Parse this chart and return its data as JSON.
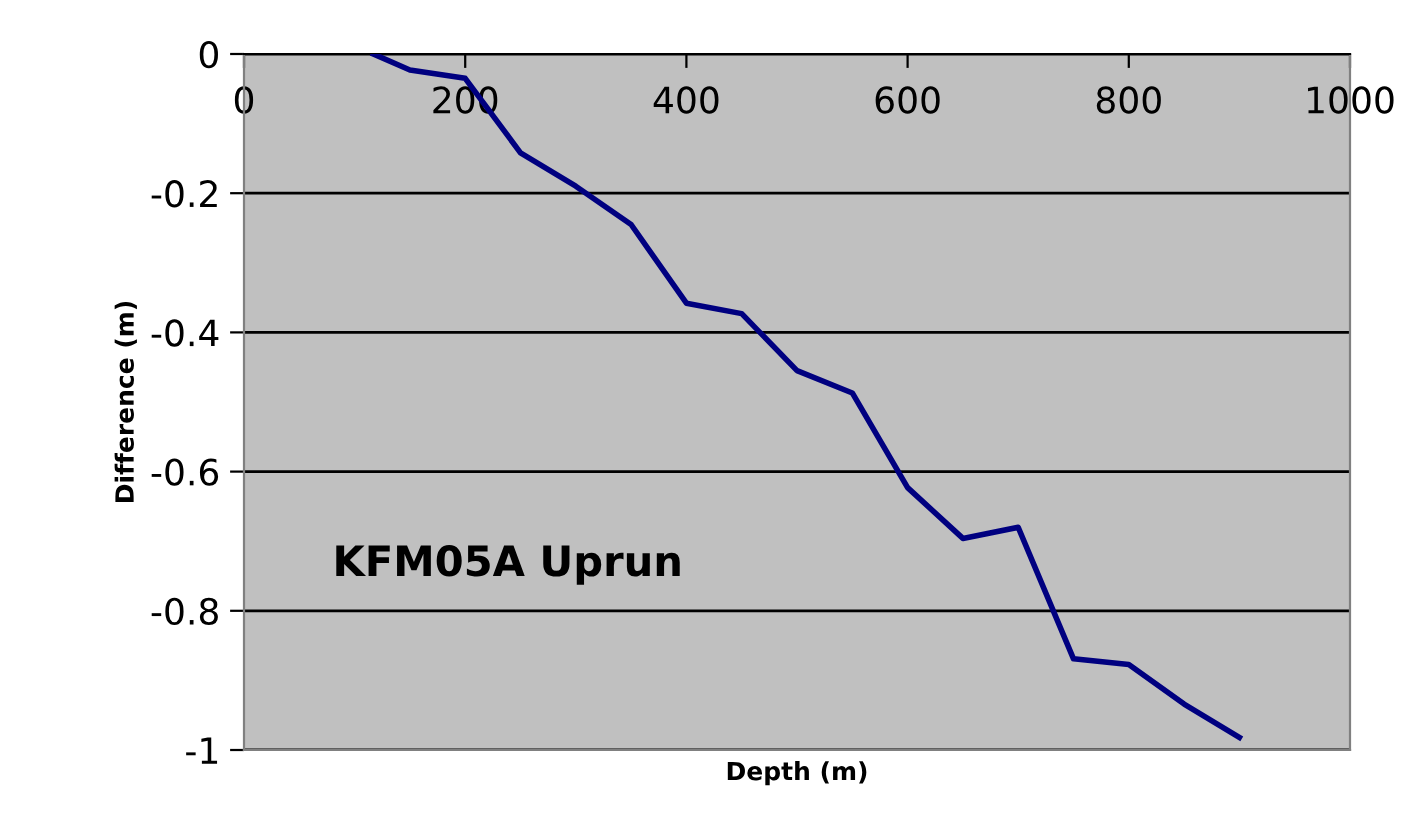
{
  "chart_data": {
    "type": "line",
    "xlabel": "Depth (m)",
    "ylabel": "Difference (m)",
    "annotations": [
      "KFM05A Uprun"
    ],
    "x": [
      117,
      150,
      200,
      250,
      300,
      350,
      400,
      450,
      500,
      550,
      600,
      650,
      700,
      750,
      800,
      850,
      900
    ],
    "series": [
      {
        "color": "#000080",
        "values": [
          0,
          -0.023,
          -0.035,
          -0.142,
          -0.19,
          -0.245,
          -0.358,
          -0.373,
          -0.455,
          -0.487,
          -0.623,
          -0.696,
          -0.68,
          -0.869,
          -0.877,
          -0.934,
          -0.982
        ]
      }
    ],
    "xlim": [
      0,
      1000
    ],
    "xticks": [
      0,
      200,
      400,
      600,
      800,
      1000
    ],
    "ylim": [
      -1,
      0
    ],
    "yticks": [
      -1,
      -0.8,
      -0.6,
      -0.4,
      -0.2,
      0
    ],
    "grid": "y",
    "legend": false,
    "marker": "none",
    "line_style": "solid"
  }
}
